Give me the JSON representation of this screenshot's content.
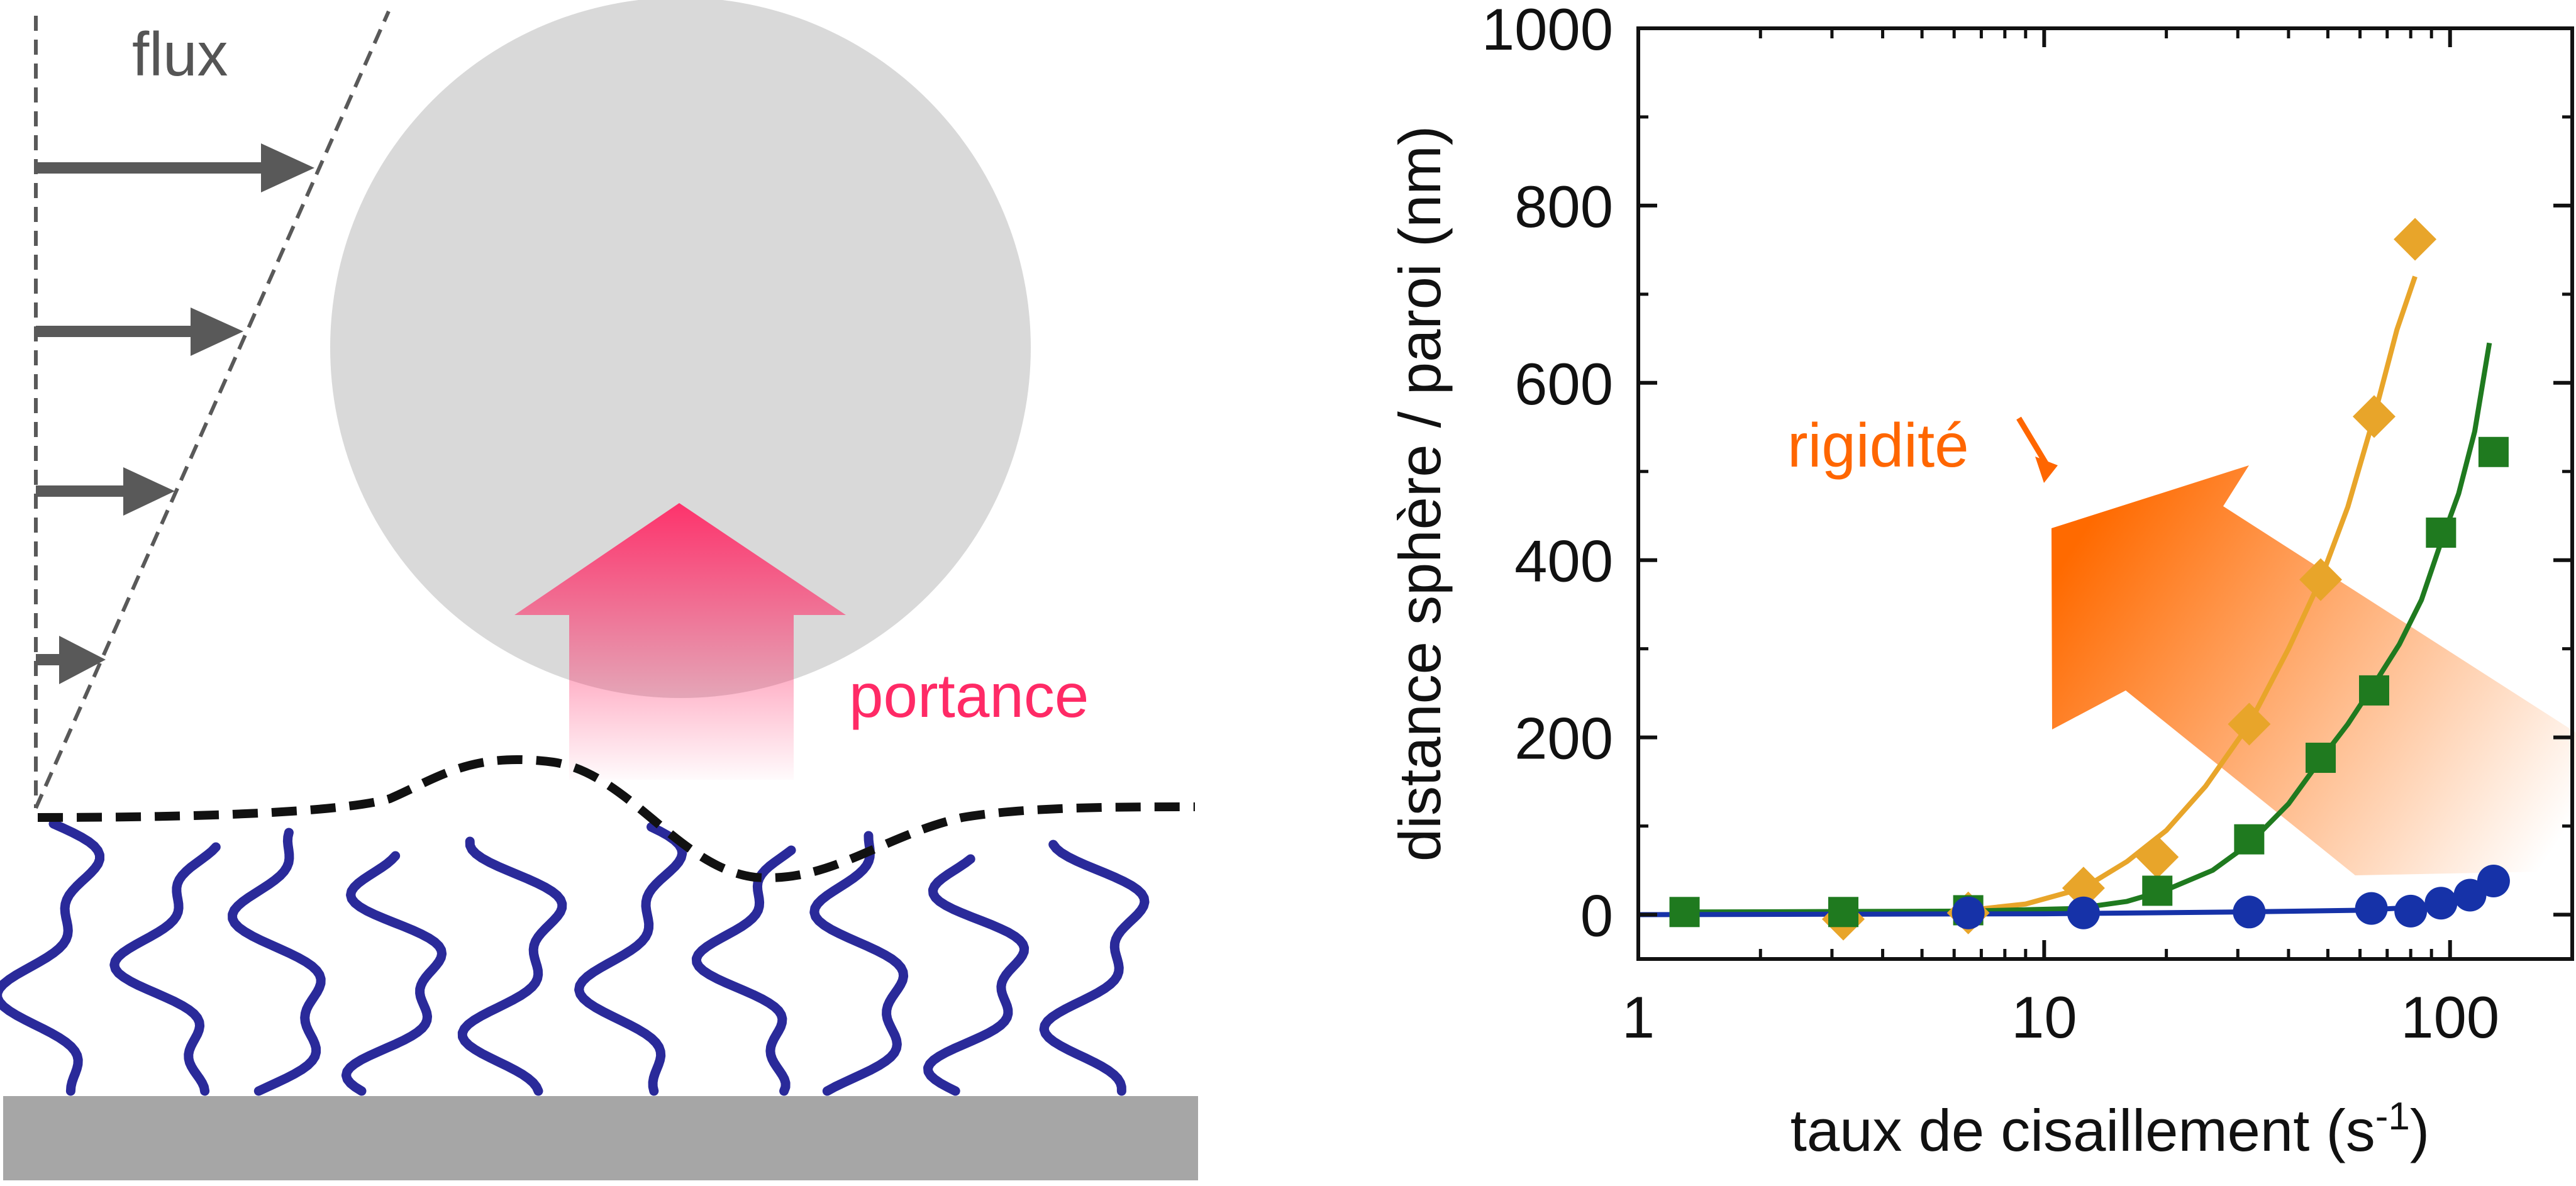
{
  "schematic": {
    "flux_label": "flux",
    "lift_label": "portance",
    "colors": {
      "sphere": "#d9d9d9",
      "flow_arrows": "#595959",
      "lift_arrow": "#ff3366",
      "lift_text": "#ff2a66",
      "polymer_brush": "#2a2a9a",
      "substrate": "#a6a6a6",
      "interface": "#111111"
    }
  },
  "chart_data": {
    "type": "scatter",
    "title": "",
    "xlabel": "taux de cisaillement (s",
    "xlabel_sup": "-1",
    "xlabel_end": ")",
    "ylabel": "distance sphère / paroi (nm)",
    "xscale": "log",
    "xlim": [
      1,
      200
    ],
    "ylim": [
      -50,
      1000
    ],
    "xticks": [
      1,
      10,
      100
    ],
    "xtick_labels": [
      "1",
      "10",
      "100"
    ],
    "yticks": [
      0,
      200,
      400,
      600,
      800,
      1000
    ],
    "ytick_labels": [
      "0",
      "200",
      "400",
      "600",
      "800",
      "1000"
    ],
    "annotation": "rigidité",
    "annotation_color": "#ff6600",
    "series": [
      {
        "marker": "diamond",
        "color": "#e8a52a",
        "points": [
          [
            3.2,
            -5
          ],
          [
            6.5,
            2
          ],
          [
            12.5,
            30
          ],
          [
            19,
            65
          ],
          [
            32,
            215
          ],
          [
            48,
            378
          ],
          [
            65,
            562
          ],
          [
            82,
            762
          ]
        ],
        "fit": [
          [
            6.5,
            5
          ],
          [
            9,
            12
          ],
          [
            12.5,
            30
          ],
          [
            16,
            60
          ],
          [
            20,
            95
          ],
          [
            25,
            145
          ],
          [
            32,
            215
          ],
          [
            40,
            300
          ],
          [
            48,
            378
          ],
          [
            56,
            460
          ],
          [
            65,
            562
          ],
          [
            74,
            660
          ],
          [
            82,
            720
          ]
        ]
      },
      {
        "marker": "square",
        "color": "#1f7a1f",
        "points": [
          [
            1.3,
            3
          ],
          [
            3.2,
            3
          ],
          [
            6.5,
            5
          ],
          [
            19,
            27
          ],
          [
            32,
            85
          ],
          [
            48,
            177
          ],
          [
            65,
            253
          ],
          [
            95,
            431
          ],
          [
            128,
            522
          ]
        ],
        "fit": [
          [
            1.3,
            3
          ],
          [
            6.5,
            4
          ],
          [
            12,
            7
          ],
          [
            16,
            15
          ],
          [
            20,
            28
          ],
          [
            26,
            50
          ],
          [
            32,
            80
          ],
          [
            40,
            125
          ],
          [
            48,
            175
          ],
          [
            56,
            215
          ],
          [
            65,
            260
          ],
          [
            75,
            305
          ],
          [
            85,
            355
          ],
          [
            95,
            420
          ],
          [
            105,
            475
          ],
          [
            115,
            545
          ],
          [
            125,
            645
          ]
        ]
      },
      {
        "marker": "circle",
        "color": "#1632a8",
        "points": [
          [
            6.5,
            2
          ],
          [
            12.5,
            2
          ],
          [
            32,
            3
          ],
          [
            64,
            7
          ],
          [
            80,
            4
          ],
          [
            95,
            13
          ],
          [
            112,
            22
          ],
          [
            128,
            38
          ]
        ],
        "fit": [
          [
            1,
            0
          ],
          [
            10,
            1
          ],
          [
            30,
            3
          ],
          [
            60,
            5
          ],
          [
            80,
            8
          ],
          [
            95,
            12
          ],
          [
            110,
            18
          ],
          [
            125,
            28
          ],
          [
            135,
            36
          ]
        ]
      }
    ]
  }
}
